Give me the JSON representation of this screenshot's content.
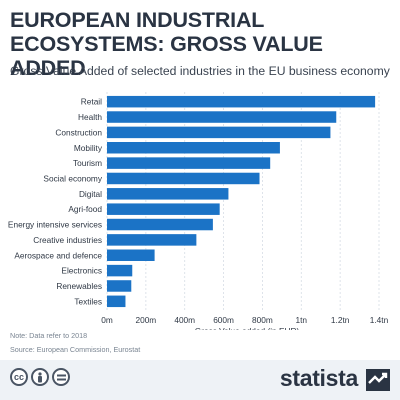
{
  "header": {
    "title": "EUROPEAN INDUSTRIAL ECOSYSTEMS: GROSS VALUE ADDED",
    "subtitle": "Gross Value Added of selected industries in the EU business economy"
  },
  "chart_data": {
    "type": "bar",
    "orientation": "horizontal",
    "categories": [
      "Retail",
      "Health",
      "Construction",
      "Mobility",
      "Tourism",
      "Social economy",
      "Digital",
      "Agri-food",
      "Energy intensive services",
      "Creative industries",
      "Aerospace and defence",
      "Electronics",
      "Renewables",
      "Textiles"
    ],
    "values": [
      1380,
      1180,
      1150,
      890,
      840,
      785,
      625,
      580,
      545,
      460,
      245,
      130,
      125,
      95
    ],
    "units": "million EUR",
    "xlabel": "Gross Value added (in EUR)",
    "xlim": [
      0,
      1400
    ],
    "xticks": [
      0,
      200,
      400,
      600,
      800,
      1000,
      1200,
      1400
    ],
    "xtick_labels": [
      "0m",
      "200m",
      "400m",
      "600m",
      "800m",
      "1tn",
      "1.2tn",
      "1.4tn"
    ],
    "bar_color": "#1b73c6",
    "grid": true
  },
  "footer": {
    "note": "Note: Data refer to 2018",
    "source": "Source: European Commission, Eurostat",
    "brand": "statista",
    "icons": [
      "cc-icon",
      "attribution-icon",
      "no-derivatives-icon"
    ]
  }
}
